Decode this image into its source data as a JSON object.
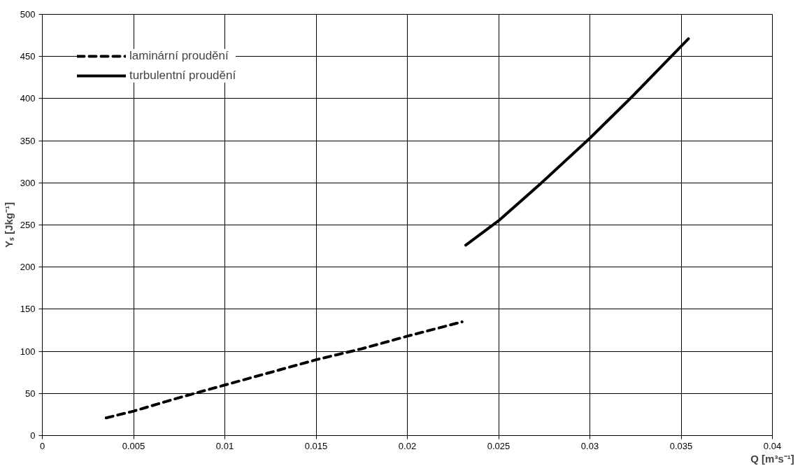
{
  "chart_data": {
    "type": "line",
    "xlabel": "Q [m³s⁻¹]",
    "ylabel": "Yₛ [Jkg⁻¹]",
    "xlim": [
      0,
      0.04
    ],
    "xticks": [
      0,
      0.005,
      0.01,
      0.015,
      0.02,
      0.025,
      0.03,
      0.035,
      0.04
    ],
    "ylim": [
      0,
      500
    ],
    "yticks": [
      0,
      50,
      100,
      150,
      200,
      250,
      300,
      350,
      400,
      450,
      500
    ],
    "grid": true,
    "legend": "top left",
    "marker": "none",
    "series": [
      {
        "name": "laminární proudění",
        "color": "#000000",
        "line_style": "dashed",
        "x": [
          0.0035,
          0.005,
          0.0075,
          0.01,
          0.0125,
          0.015,
          0.0175,
          0.02,
          0.023
        ],
        "values": [
          21,
          29,
          45,
          60,
          75,
          90,
          103,
          118,
          135
        ]
      },
      {
        "name": "turbulentní proudění",
        "color": "#000000",
        "line_style": "solid",
        "x": [
          0.0232,
          0.025,
          0.0273,
          0.03,
          0.0323,
          0.0354
        ],
        "values": [
          226,
          255,
          299,
          353,
          402,
          471
        ]
      }
    ]
  }
}
